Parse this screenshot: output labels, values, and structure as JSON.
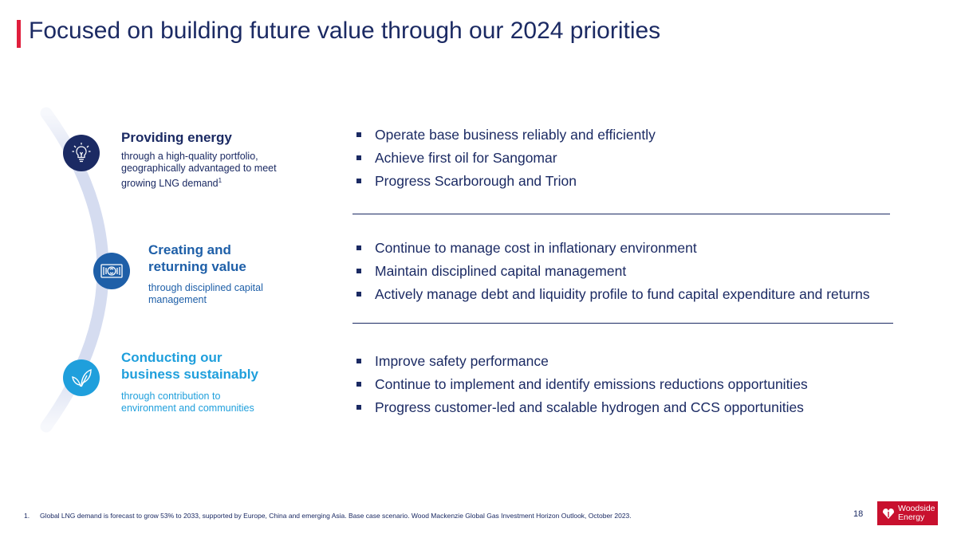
{
  "title": "Focused on building future value through our 2024 priorities",
  "accent_color": "#e01f3d",
  "pillars": [
    {
      "icon": "lightbulb-icon",
      "heading_lines": [
        "Providing energy"
      ],
      "sub_lines": [
        "through a high-quality portfolio,",
        "geographically advantaged to meet",
        "growing LNG demand"
      ],
      "sup": "1",
      "color": "#1b2a63"
    },
    {
      "icon": "capital-icon",
      "heading_lines": [
        "Creating and",
        "returning value"
      ],
      "sub_lines": [
        "through disciplined capital",
        "management"
      ],
      "color": "#1e5fa8"
    },
    {
      "icon": "leaf-icon",
      "heading_lines": [
        "Conducting our",
        "business sustainably"
      ],
      "sub_lines": [
        "through contribution to",
        "environment and communities"
      ],
      "color": "#1f9fdc"
    }
  ],
  "priorities": [
    [
      "Operate base business reliably and efficiently",
      "Achieve first oil for Sangomar",
      "Progress Scarborough and Trion"
    ],
    [
      "Continue to manage cost in inflationary environment",
      "Maintain disciplined capital management",
      "Actively manage debt and liquidity profile to fund capital expenditure and returns"
    ],
    [
      "Improve safety performance",
      "Continue to implement and identify emissions reductions opportunities",
      "Progress customer-led and scalable hydrogen and CCS opportunities"
    ]
  ],
  "footnote": {
    "number": "1.",
    "text": "Global LNG demand is forecast to grow 53% to 2033, supported by Europe, China and emerging Asia. Base case scenario. Wood Mackenzie Global Gas Investment Horizon Outlook, October 2023."
  },
  "page_number": "18",
  "logo": {
    "line1": "Woodside",
    "line2": "Energy"
  }
}
